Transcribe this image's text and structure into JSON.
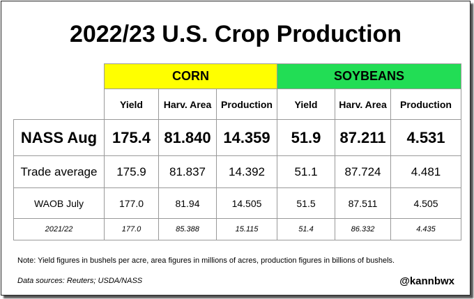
{
  "header": {
    "title": "2022/23 U.S. Crop Production"
  },
  "table": {
    "groups": [
      "CORN",
      "SOYBEANS"
    ],
    "columns": [
      "Yield",
      "Harv. Area",
      "Production",
      "Yield",
      "Harv. Area",
      "Production"
    ],
    "rows": [
      [
        "NASS Aug",
        "175.4",
        "81.840",
        "14.359",
        "51.9",
        "87.211",
        "4.531"
      ],
      [
        "Trade average",
        "175.9",
        "81.837",
        "14.392",
        "51.1",
        "87.724",
        "4.481"
      ],
      [
        "WAOB July",
        "177.0",
        "81.94",
        "14.505",
        "51.5",
        "87.511",
        "4.505"
      ],
      [
        "2021/22",
        "177.0",
        "85.388",
        "15.115",
        "51.4",
        "86.332",
        "4.435"
      ]
    ]
  },
  "footer": {
    "note": "Note: Yield figures in bushels per acre, area figures in millions of acres, production figures in billions of bushels.",
    "sources": "Data sources: Reuters; USDA/NASS",
    "handle": "@kannbwx"
  }
}
